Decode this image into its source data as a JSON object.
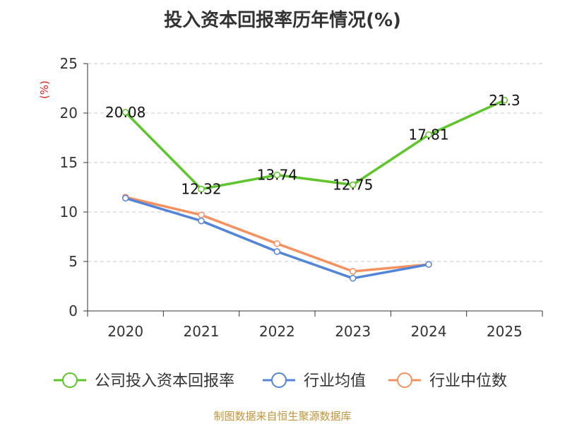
{
  "chart_data": {
    "type": "line",
    "title": "投入资本回报率历年情况(%)",
    "ylabel": "(%)",
    "xlabel": "",
    "ylim": [
      0,
      25
    ],
    "yticks": [
      0,
      5,
      10,
      15,
      20,
      25
    ],
    "categories": [
      "2020",
      "2021",
      "2022",
      "2023",
      "2024",
      "2025"
    ],
    "grid": true,
    "legend_position": "bottom",
    "series": [
      {
        "name": "公司投入资本回报率",
        "color": "#5ec52b",
        "values": [
          20.08,
          12.32,
          13.74,
          12.75,
          17.81,
          21.3
        ],
        "labels": [
          "20.08",
          "12.32",
          "13.74",
          "12.75",
          "17.81",
          "21.3"
        ],
        "show_labels": true
      },
      {
        "name": "行业均值",
        "color": "#5284d8",
        "values": [
          11.4,
          9.1,
          6.0,
          3.3,
          4.7,
          null
        ],
        "show_labels": false
      },
      {
        "name": "行业中位数",
        "color": "#f5915e",
        "values": [
          11.5,
          9.7,
          6.8,
          4.0,
          4.7,
          null
        ],
        "show_labels": false
      }
    ]
  },
  "footer": {
    "source": "制图数据来自恒生聚源数据库"
  }
}
